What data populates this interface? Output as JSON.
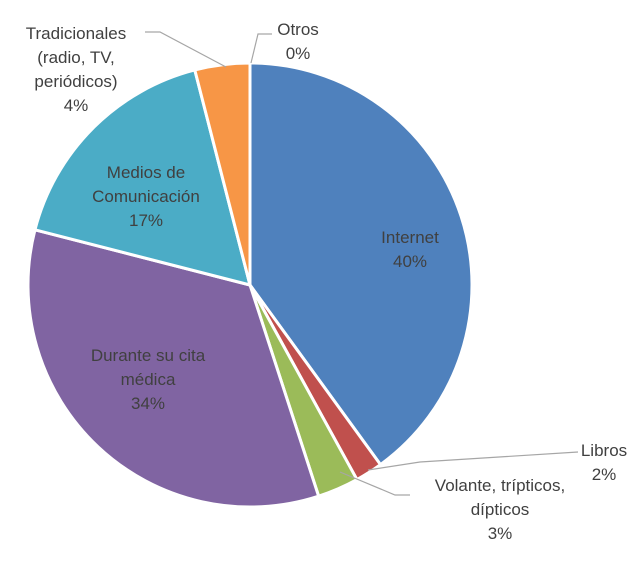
{
  "chart_data": {
    "type": "pie",
    "categories": [
      "Internet",
      "Libros",
      "Volante, trípticos, dípticos",
      "Durante su cita médica",
      "Medios de Comunicación",
      "Tradicionales (radio, TV, periódicos)",
      "Otros"
    ],
    "values": [
      40,
      2,
      3,
      34,
      17,
      4,
      0
    ],
    "value_labels": [
      "40%",
      "2%",
      "3%",
      "34%",
      "17%",
      "4%",
      "0%"
    ],
    "colors": [
      "#4f81bd",
      "#c0504d",
      "#9bbb59",
      "#8064a2",
      "#4bacc6",
      "#f79646",
      "#2c4d75"
    ]
  }
}
